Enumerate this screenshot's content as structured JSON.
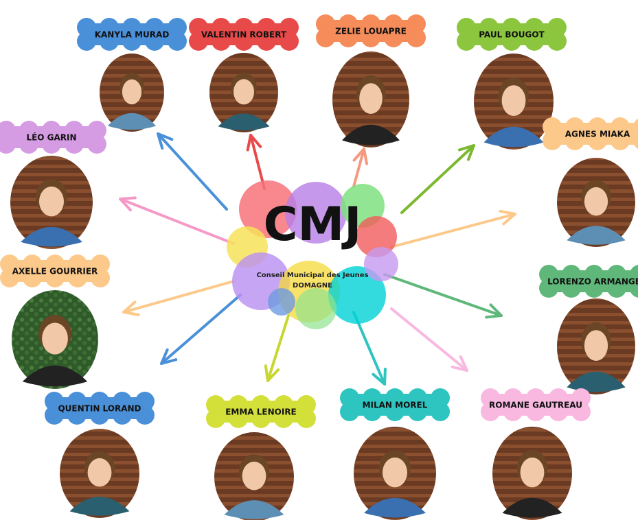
{
  "center": {
    "title": "CMJ",
    "subtitle": "Conseil Municipal des Jeunes",
    "place": "DOMAGNE"
  },
  "nodes": [
    {
      "label": "KANYLA MURAD"
    },
    {
      "label": "VALENTIN ROBERT"
    },
    {
      "label": "ZELIE LOUAPRE"
    },
    {
      "label": "PAUL BOUGOT"
    },
    {
      "label": "AGNES MIAKA"
    },
    {
      "label": "LORENZO ARMANGE"
    },
    {
      "label": "ROMANE GAUTREAU"
    },
    {
      "label": "MILAN MOREL"
    },
    {
      "label": "EMMA LENOIRE"
    },
    {
      "label": "QUENTIN LORAND"
    },
    {
      "label": "AXELLE GOURRIER"
    },
    {
      "label": "LÉO GARIN"
    }
  ]
}
